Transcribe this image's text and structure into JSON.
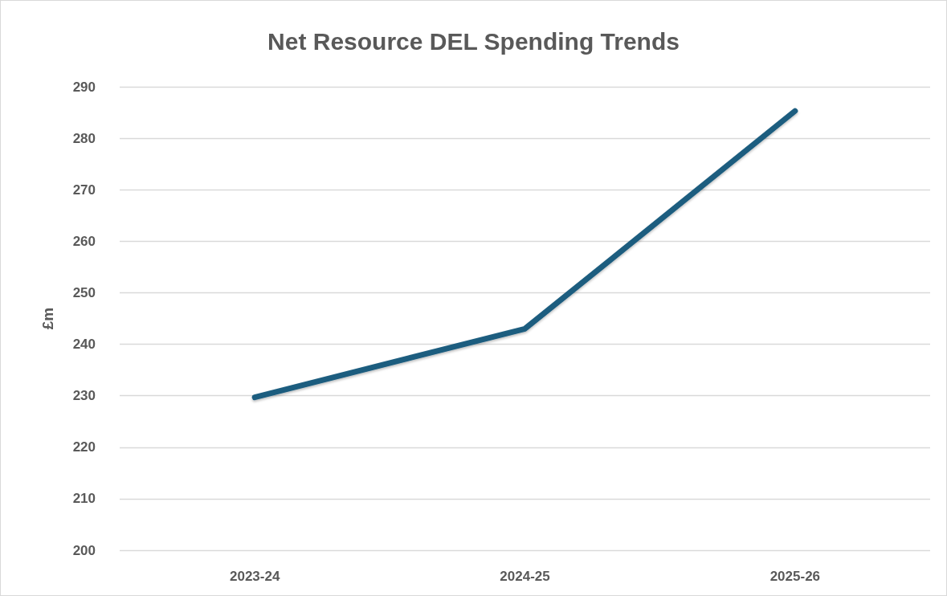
{
  "chart_data": {
    "type": "line",
    "title": "Net Resource DEL Spending Trends",
    "ylabel": "£m",
    "categories": [
      "2023-24",
      "2024-25",
      "2025-26"
    ],
    "series": [
      {
        "color": "#1c5d7f",
        "values": [
          229.7,
          243,
          285.3
        ]
      }
    ],
    "ylim": [
      200,
      290
    ],
    "yticks": [
      200,
      210,
      220,
      230,
      240,
      250,
      260,
      270,
      280,
      290
    ],
    "grid": "y",
    "marker": "none",
    "line_style": "solid"
  }
}
